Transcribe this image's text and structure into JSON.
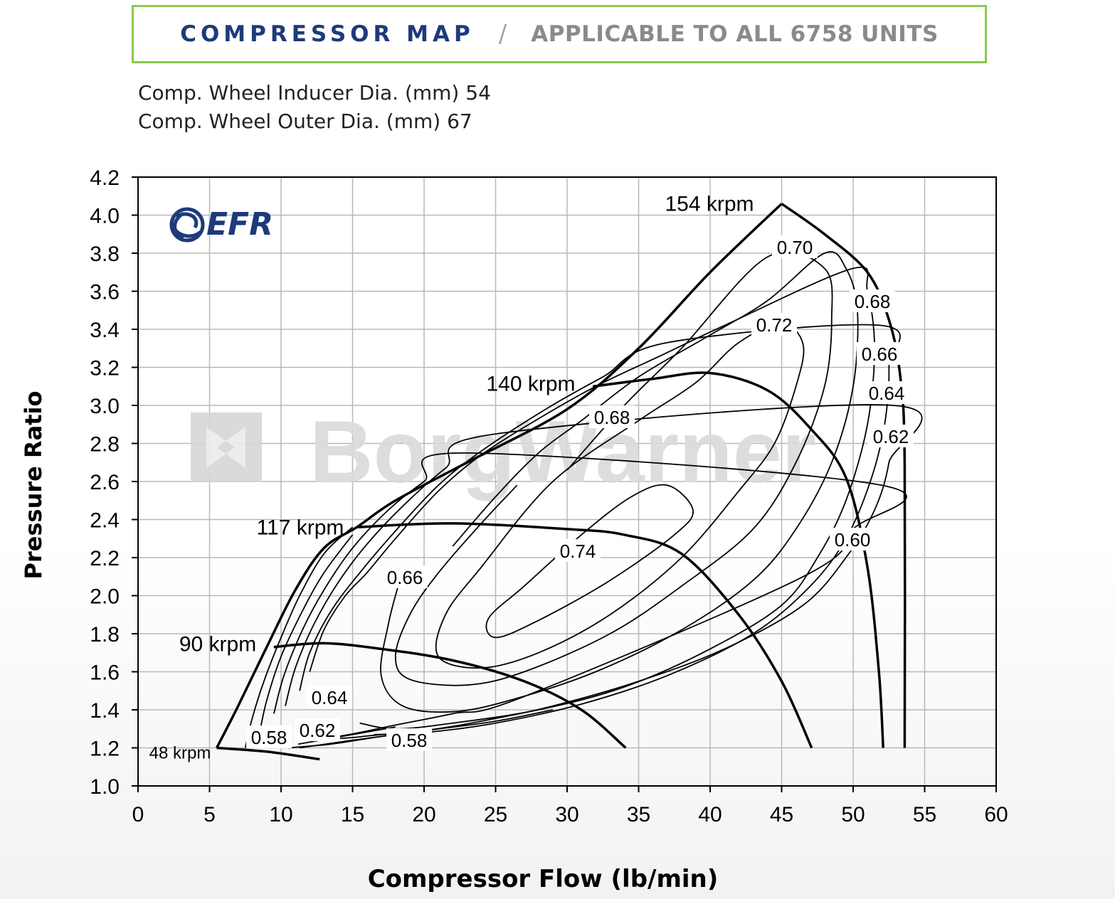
{
  "header": {
    "title": "COMPRESSOR MAP",
    "separator": "/",
    "subtitle": "APPLICABLE TO ALL 6758 UNITS"
  },
  "specs": {
    "inducer": "Comp. Wheel Inducer Dia. (mm) 54",
    "outer": "Comp. Wheel Outer Dia. (mm) 67"
  },
  "logo": {
    "text": "EFR",
    "color": "#1e3a7b"
  },
  "watermark": {
    "text": "BorgWarner"
  },
  "colors": {
    "accent_border": "#8cc84b",
    "title": "#1e3a7b",
    "grid": "#b8b8b8",
    "line": "#000000"
  },
  "chart_data": {
    "type": "line",
    "xlabel": "Compressor Flow (lb/min)",
    "ylabel": "Pressure Ratio",
    "xlim": [
      0,
      60
    ],
    "ylim": [
      1.0,
      4.2
    ],
    "xticks": [
      0,
      5,
      10,
      15,
      20,
      25,
      30,
      35,
      40,
      45,
      50,
      55,
      60
    ],
    "yticks": [
      "1.0",
      "1.2",
      "1.4",
      "1.6",
      "1.8",
      "2.0",
      "2.2",
      "2.4",
      "2.6",
      "2.8",
      "3.0",
      "3.2",
      "3.4",
      "3.6",
      "3.8",
      "4.0",
      "4.2"
    ],
    "grid": true,
    "surge_line": [
      [
        5.5,
        1.2
      ],
      [
        7,
        1.42
      ],
      [
        9,
        1.73
      ],
      [
        11,
        2.03
      ],
      [
        13,
        2.25
      ],
      [
        15.3,
        2.36
      ],
      [
        18,
        2.5
      ],
      [
        23,
        2.7
      ],
      [
        30,
        2.98
      ],
      [
        35,
        3.3
      ],
      [
        40,
        3.7
      ],
      [
        45,
        4.06
      ]
    ],
    "choke_line": [
      [
        45,
        4.06
      ],
      [
        48,
        3.9
      ],
      [
        51,
        3.7
      ],
      [
        52.5,
        3.45
      ],
      [
        53.3,
        3.15
      ],
      [
        53.6,
        2.7
      ],
      [
        53.6,
        1.2
      ]
    ],
    "speed_lines": [
      {
        "label": "48 krpm",
        "points": [
          [
            5.5,
            1.2
          ],
          [
            9,
            1.18
          ],
          [
            12.7,
            1.14
          ]
        ]
      },
      {
        "label": "90 krpm",
        "points": [
          [
            9.5,
            1.73
          ],
          [
            13,
            1.75
          ],
          [
            17,
            1.72
          ],
          [
            22,
            1.66
          ],
          [
            27,
            1.55
          ],
          [
            31,
            1.4
          ],
          [
            34.1,
            1.2
          ]
        ]
      },
      {
        "label": "117 krpm",
        "points": [
          [
            15.3,
            2.36
          ],
          [
            22,
            2.38
          ],
          [
            30,
            2.35
          ],
          [
            34,
            2.32
          ],
          [
            38,
            2.22
          ],
          [
            42,
            1.9
          ],
          [
            45,
            1.55
          ],
          [
            47.1,
            1.2
          ]
        ]
      },
      {
        "label": "140 krpm",
        "points": [
          [
            31.8,
            3.1
          ],
          [
            36,
            3.14
          ],
          [
            40,
            3.17
          ],
          [
            44,
            3.08
          ],
          [
            47,
            2.88
          ],
          [
            49.5,
            2.62
          ],
          [
            51,
            2.15
          ],
          [
            51.8,
            1.6
          ],
          [
            52.1,
            1.2
          ]
        ]
      },
      {
        "label": "154 krpm",
        "points": [
          [
            45,
            4.06
          ],
          [
            48,
            3.9
          ],
          [
            51,
            3.7
          ],
          [
            52.5,
            3.45
          ],
          [
            53.3,
            3.15
          ],
          [
            53.6,
            2.7
          ],
          [
            53.6,
            1.2
          ]
        ]
      }
    ],
    "efficiency_islands": [
      {
        "label": "0.74",
        "closed": true,
        "points": [
          [
            34.5,
            2.52
          ],
          [
            37,
            2.58
          ],
          [
            38.8,
            2.45
          ],
          [
            37.5,
            2.32
          ],
          [
            33,
            2.08
          ],
          [
            28,
            1.87
          ],
          [
            25,
            1.78
          ],
          [
            24.5,
            1.88
          ],
          [
            27,
            2.05
          ],
          [
            31,
            2.32
          ]
        ]
      },
      {
        "label": "0.72",
        "closed": true,
        "points": [
          [
            42,
            3.33
          ],
          [
            45,
            3.43
          ],
          [
            46.5,
            3.32
          ],
          [
            46,
            3.1
          ],
          [
            44.5,
            2.8
          ],
          [
            42,
            2.55
          ],
          [
            38,
            2.2
          ],
          [
            33,
            1.9
          ],
          [
            28,
            1.7
          ],
          [
            24,
            1.62
          ],
          [
            21,
            1.68
          ],
          [
            21.5,
            1.9
          ],
          [
            24,
            2.15
          ],
          [
            29,
            2.6
          ],
          [
            35,
            2.92
          ],
          [
            39,
            3.12
          ]
        ]
      },
      {
        "label": "0.70",
        "closed": false,
        "points": [
          [
            30,
            2.66
          ],
          [
            34,
            3.0
          ],
          [
            38,
            3.3
          ],
          [
            44,
            3.78
          ],
          [
            48,
            3.72
          ],
          [
            48.5,
            3.45
          ],
          [
            48,
            3.1
          ],
          [
            46,
            2.7
          ],
          [
            43,
            2.35
          ],
          [
            38,
            2.05
          ],
          [
            33,
            1.8
          ],
          [
            27,
            1.6
          ],
          [
            23,
            1.53
          ],
          [
            19,
            1.56
          ],
          [
            18,
            1.68
          ],
          [
            19,
            1.9
          ],
          [
            21,
            2.12
          ],
          [
            24,
            2.38
          ],
          [
            26.5,
            2.58
          ]
        ]
      },
      {
        "label": "0.68",
        "closed": false,
        "points": [
          [
            22,
            2.26
          ],
          [
            25,
            2.52
          ],
          [
            28,
            2.75
          ],
          [
            31,
            2.92
          ],
          [
            35,
            3.15
          ],
          [
            40,
            3.37
          ],
          [
            44,
            3.55
          ],
          [
            48,
            3.8
          ],
          [
            49.5,
            3.72
          ],
          [
            50.3,
            3.5
          ],
          [
            50,
            3.1
          ],
          [
            48.5,
            2.7
          ],
          [
            46,
            2.35
          ],
          [
            43,
            2.08
          ],
          [
            38,
            1.82
          ],
          [
            32,
            1.6
          ],
          [
            26,
            1.45
          ],
          [
            22,
            1.39
          ],
          [
            18.5,
            1.42
          ],
          [
            17,
            1.58
          ],
          [
            17.5,
            1.85
          ],
          [
            18.3,
            2.08
          ]
        ]
      },
      {
        "label": "0.66",
        "closed": false,
        "points": [
          [
            12,
            1.6
          ],
          [
            13,
            1.82
          ],
          [
            14.5,
            2.0
          ],
          [
            16,
            2.12
          ],
          [
            18,
            2.3
          ],
          [
            21,
            2.55
          ],
          [
            24,
            2.74
          ],
          [
            28,
            2.93
          ],
          [
            32,
            3.1
          ],
          [
            36.5,
            3.26
          ],
          [
            41,
            3.42
          ],
          [
            50,
            3.72
          ],
          [
            51,
            3.6
          ],
          [
            51.5,
            3.3
          ],
          [
            51,
            2.9
          ],
          [
            49.5,
            2.5
          ],
          [
            47.5,
            2.2
          ],
          [
            45,
            1.95
          ],
          [
            40,
            1.72
          ],
          [
            34,
            1.52
          ],
          [
            28,
            1.4
          ],
          [
            22,
            1.33
          ],
          [
            18,
            1.3
          ],
          [
            15.5,
            1.33
          ]
        ]
      },
      {
        "label": "0.64",
        "closed": false,
        "points": [
          [
            11.3,
            1.5
          ],
          [
            12,
            1.7
          ],
          [
            13.5,
            1.92
          ],
          [
            15.5,
            2.12
          ],
          [
            18,
            2.34
          ],
          [
            21,
            2.58
          ],
          [
            24,
            2.76
          ],
          [
            28.5,
            2.98
          ],
          [
            32.5,
            3.15
          ],
          [
            37,
            3.33
          ],
          [
            52,
            3.42
          ],
          [
            52.5,
            3.2
          ],
          [
            52.2,
            2.9
          ],
          [
            51.2,
            2.6
          ],
          [
            49.5,
            2.3
          ],
          [
            47,
            2.05
          ],
          [
            43,
            1.8
          ],
          [
            37,
            1.58
          ],
          [
            31,
            1.43
          ],
          [
            25,
            1.33
          ],
          [
            20,
            1.28
          ],
          [
            16.5,
            1.27
          ]
        ]
      },
      {
        "label": "0.62",
        "closed": false,
        "points": [
          [
            10.3,
            1.42
          ],
          [
            11,
            1.62
          ],
          [
            12.3,
            1.85
          ],
          [
            14,
            2.07
          ],
          [
            16,
            2.27
          ],
          [
            18.5,
            2.47
          ],
          [
            21.5,
            2.67
          ],
          [
            25,
            2.85
          ],
          [
            52.8,
            3.0
          ],
          [
            52.5,
            2.7
          ],
          [
            51.5,
            2.45
          ],
          [
            49.5,
            2.2
          ],
          [
            46.5,
            1.95
          ],
          [
            41,
            1.72
          ],
          [
            35,
            1.55
          ],
          [
            29,
            1.42
          ],
          [
            24,
            1.34
          ],
          [
            20,
            1.29
          ],
          [
            17,
            1.27
          ],
          [
            14,
            1.25
          ],
          [
            12,
            1.27
          ]
        ]
      },
      {
        "label": "0.60",
        "closed": false,
        "points": [
          [
            9.5,
            1.38
          ],
          [
            10.2,
            1.58
          ],
          [
            11.5,
            1.82
          ],
          [
            13,
            2.03
          ],
          [
            15,
            2.25
          ],
          [
            17.5,
            2.45
          ],
          [
            20,
            2.6
          ],
          [
            23,
            2.75
          ],
          [
            52,
            2.58
          ],
          [
            50,
            2.35
          ],
          [
            46.5,
            2.1
          ],
          [
            27,
            1.47
          ],
          [
            22,
            1.38
          ],
          [
            18,
            1.32
          ],
          [
            14,
            1.26
          ],
          [
            11,
            1.24
          ]
        ]
      },
      {
        "label": "0.58",
        "closed": false,
        "points": [
          [
            8.5,
            1.28
          ],
          [
            9,
            1.45
          ],
          [
            10,
            1.68
          ],
          [
            11.5,
            1.92
          ],
          [
            13,
            2.12
          ],
          [
            15,
            2.32
          ]
        ]
      },
      {
        "label": "0.58",
        "closed": false,
        "points": [
          [
            11.3,
            1.2
          ],
          [
            15,
            1.24
          ],
          [
            20,
            1.29
          ],
          [
            25,
            1.34
          ],
          [
            29,
            1.4
          ]
        ]
      },
      {
        "label": "",
        "closed": false,
        "points": [
          [
            7.5,
            1.2
          ],
          [
            8,
            1.36
          ],
          [
            8.8,
            1.55
          ],
          [
            10,
            1.78
          ],
          [
            11.3,
            2.0
          ],
          [
            13,
            2.22
          ],
          [
            15,
            2.36
          ]
        ]
      },
      {
        "label": "",
        "closed": false,
        "points": [
          [
            10.5,
            1.2
          ],
          [
            13.5,
            1.22
          ],
          [
            17,
            1.26
          ],
          [
            21,
            1.3
          ]
        ]
      },
      {
        "label": "",
        "closed": false,
        "points": [
          [
            11.2,
            1.22
          ],
          [
            15,
            1.27
          ],
          [
            18,
            1.31
          ]
        ]
      }
    ],
    "label_values": {
      "speed": [
        "154 krpm",
        "140 krpm",
        "117 krpm",
        "90 krpm",
        "48 krpm"
      ],
      "efficiency": [
        "0.74",
        "0.72",
        "0.70",
        "0.68",
        "0.68",
        "0.66",
        "0.66",
        "0.64",
        "0.64",
        "0.62",
        "0.62",
        "0.60",
        "0.58",
        "0.58"
      ]
    }
  }
}
